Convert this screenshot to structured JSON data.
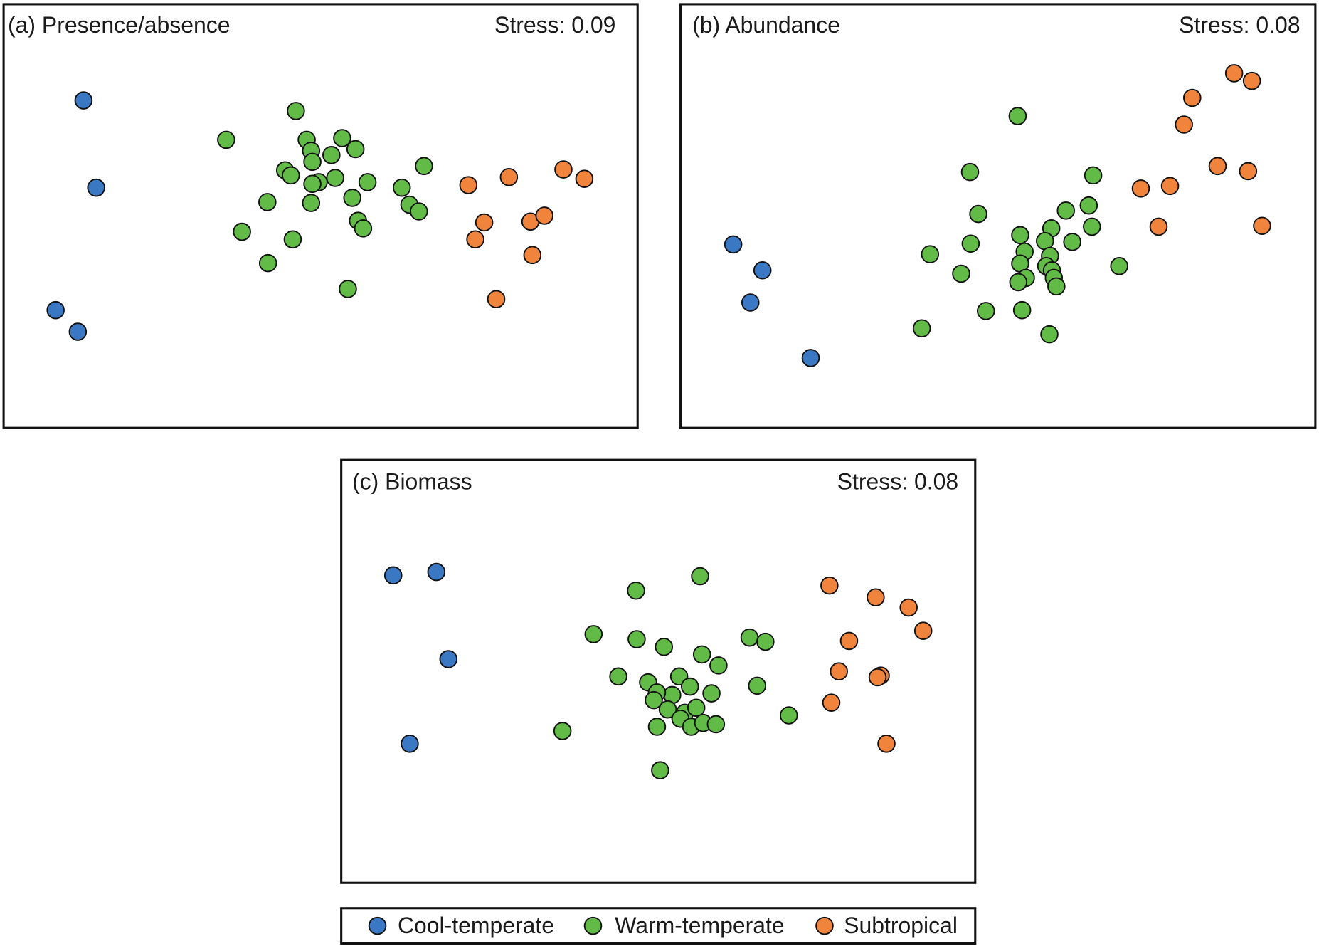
{
  "colors": {
    "Cool-temperate": "#3a78c4",
    "Warm-temperate": "#62bb47",
    "Subtropical": "#f0843c"
  },
  "chart_data": [
    {
      "type": "scatter",
      "title": "(a) Presence/absence",
      "annotation": "Stress: 0.09",
      "xlabel": "",
      "ylabel": "",
      "xlim": [
        0,
        100
      ],
      "ylim": [
        0,
        100
      ],
      "grid": false,
      "series": [
        {
          "name": "Cool-temperate",
          "points": [
            [
              12.6,
              77.3
            ],
            [
              14.6,
              56.7
            ],
            [
              8.2,
              27.8
            ],
            [
              11.7,
              22.7
            ]
          ]
        },
        {
          "name": "Warm-temperate",
          "points": [
            [
              46.1,
              74.8
            ],
            [
              35.1,
              68.0
            ],
            [
              47.8,
              68.0
            ],
            [
              53.4,
              68.4
            ],
            [
              48.5,
              65.4
            ],
            [
              51.7,
              64.4
            ],
            [
              55.5,
              65.8
            ],
            [
              48.7,
              62.8
            ],
            [
              44.4,
              60.8
            ],
            [
              45.3,
              59.6
            ],
            [
              49.7,
              58.0
            ],
            [
              48.7,
              57.6
            ],
            [
              52.3,
              59.0
            ],
            [
              57.4,
              58.0
            ],
            [
              66.3,
              61.8
            ],
            [
              62.8,
              56.7
            ],
            [
              41.6,
              53.3
            ],
            [
              48.5,
              53.1
            ],
            [
              55.0,
              54.3
            ],
            [
              64.0,
              52.7
            ],
            [
              65.5,
              51.1
            ],
            [
              37.6,
              46.3
            ],
            [
              45.6,
              44.5
            ],
            [
              55.9,
              48.9
            ],
            [
              56.7,
              47.1
            ],
            [
              41.7,
              38.9
            ],
            [
              54.3,
              32.8
            ]
          ]
        },
        {
          "name": "Subtropical",
          "points": [
            [
              73.3,
              57.3
            ],
            [
              79.7,
              59.2
            ],
            [
              88.3,
              61.0
            ],
            [
              91.6,
              58.8
            ],
            [
              75.8,
              48.5
            ],
            [
              83.1,
              48.7
            ],
            [
              85.3,
              50.1
            ],
            [
              74.4,
              44.5
            ],
            [
              83.4,
              40.8
            ],
            [
              77.7,
              30.4
            ]
          ]
        }
      ]
    },
    {
      "type": "scatter",
      "title": "(b) Abundance",
      "annotation": "Stress: 0.08",
      "xlabel": "",
      "ylabel": "",
      "xlim": [
        0,
        100
      ],
      "ylim": [
        0,
        100
      ],
      "grid": false,
      "series": [
        {
          "name": "Cool-temperate",
          "points": [
            [
              8.3,
              43.3
            ],
            [
              12.9,
              37.2
            ],
            [
              11.0,
              29.6
            ],
            [
              20.5,
              16.5
            ]
          ]
        },
        {
          "name": "Warm-temperate",
          "points": [
            [
              53.1,
              73.6
            ],
            [
              45.6,
              60.4
            ],
            [
              65.0,
              59.6
            ],
            [
              46.9,
              50.5
            ],
            [
              64.3,
              52.5
            ],
            [
              60.7,
              51.3
            ],
            [
              45.7,
              43.5
            ],
            [
              53.5,
              45.5
            ],
            [
              58.4,
              47.1
            ],
            [
              57.4,
              44.1
            ],
            [
              61.7,
              43.9
            ],
            [
              64.8,
              47.5
            ],
            [
              39.3,
              41.0
            ],
            [
              54.2,
              41.6
            ],
            [
              58.2,
              40.6
            ],
            [
              53.5,
              38.8
            ],
            [
              57.6,
              38.2
            ],
            [
              58.5,
              37.2
            ],
            [
              58.8,
              35.4
            ],
            [
              54.4,
              35.4
            ],
            [
              53.2,
              34.4
            ],
            [
              59.2,
              33.4
            ],
            [
              69.1,
              38.2
            ],
            [
              44.2,
              36.4
            ],
            [
              48.1,
              27.6
            ],
            [
              53.8,
              27.8
            ],
            [
              38.0,
              23.5
            ],
            [
              58.1,
              22.1
            ]
          ]
        },
        {
          "name": "Subtropical",
          "points": [
            [
              87.2,
              83.7
            ],
            [
              90.0,
              81.9
            ],
            [
              80.6,
              77.9
            ],
            [
              79.3,
              71.6
            ],
            [
              84.6,
              61.8
            ],
            [
              89.4,
              60.6
            ],
            [
              72.5,
              56.5
            ],
            [
              77.1,
              57.1
            ],
            [
              75.3,
              47.5
            ],
            [
              91.6,
              47.7
            ]
          ]
        }
      ]
    },
    {
      "type": "scatter",
      "title": "(c) Biomass",
      "annotation": "Stress: 0.08",
      "xlabel": "",
      "ylabel": "",
      "xlim": [
        0,
        100
      ],
      "ylim": [
        0,
        100
      ],
      "grid": false,
      "series": [
        {
          "name": "Cool-temperate",
          "points": [
            [
              8.2,
              72.7
            ],
            [
              15.0,
              73.5
            ],
            [
              16.9,
              52.9
            ],
            [
              10.8,
              32.9
            ]
          ]
        },
        {
          "name": "Warm-temperate",
          "points": [
            [
              56.6,
              72.5
            ],
            [
              46.5,
              69.1
            ],
            [
              39.8,
              58.8
            ],
            [
              46.6,
              57.6
            ],
            [
              50.9,
              55.8
            ],
            [
              64.4,
              58.0
            ],
            [
              66.9,
              57.0
            ],
            [
              56.9,
              54.0
            ],
            [
              59.5,
              51.4
            ],
            [
              43.7,
              48.8
            ],
            [
              48.4,
              47.4
            ],
            [
              53.3,
              48.8
            ],
            [
              55.0,
              46.4
            ],
            [
              52.2,
              44.4
            ],
            [
              49.8,
              45.0
            ],
            [
              58.4,
              44.8
            ],
            [
              49.3,
              43.2
            ],
            [
              65.6,
              46.6
            ],
            [
              51.5,
              41.0
            ],
            [
              54.2,
              40.2
            ],
            [
              56.0,
              41.4
            ],
            [
              53.5,
              38.8
            ],
            [
              70.6,
              39.6
            ],
            [
              34.9,
              35.9
            ],
            [
              49.8,
              36.9
            ],
            [
              55.2,
              36.9
            ],
            [
              57.1,
              37.8
            ],
            [
              59.1,
              37.5
            ],
            [
              50.3,
              26.6
            ]
          ]
        },
        {
          "name": "Subtropical",
          "points": [
            [
              77.0,
              70.3
            ],
            [
              84.3,
              67.5
            ],
            [
              89.5,
              65.1
            ],
            [
              91.8,
              59.6
            ],
            [
              80.1,
              57.2
            ],
            [
              78.5,
              50.0
            ],
            [
              85.1,
              49.0
            ],
            [
              84.6,
              48.6
            ],
            [
              77.3,
              42.6
            ],
            [
              86.0,
              32.9
            ]
          ]
        }
      ]
    }
  ],
  "legend": {
    "placement": "bottom-center",
    "entries": [
      "Cool-temperate",
      "Warm-temperate",
      "Subtropical"
    ]
  }
}
